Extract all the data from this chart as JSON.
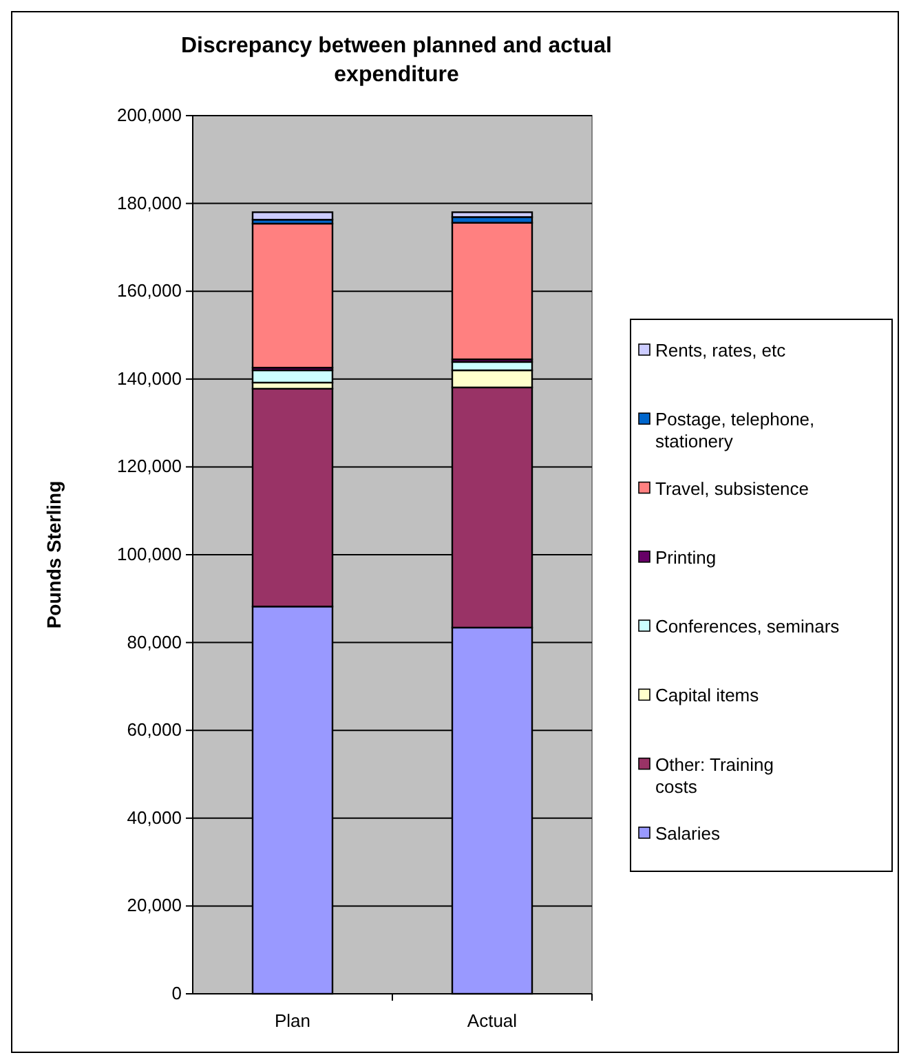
{
  "chart_data": {
    "type": "bar",
    "stacked": true,
    "title": "Discrepancy between planned and actual expenditure",
    "ylabel": "Pounds Sterling",
    "categories": [
      "Plan",
      "Actual"
    ],
    "series": [
      {
        "name": "Salaries",
        "color": "#9999ff",
        "values": [
          88200,
          83400
        ]
      },
      {
        "name": "Other:  Training costs",
        "color": "#993366",
        "values": [
          49600,
          54700
        ]
      },
      {
        "name": "Capital items",
        "color": "#ffffcc",
        "values": [
          1400,
          3900
        ]
      },
      {
        "name": "Conferences, seminars",
        "color": "#ccffff",
        "values": [
          2800,
          1900
        ]
      },
      {
        "name": "Printing",
        "color": "#660066",
        "values": [
          600,
          600
        ]
      },
      {
        "name": "Travel, subsistence",
        "color": "#ff8080",
        "values": [
          32800,
          31100
        ]
      },
      {
        "name": "Postage, telephone, stationery",
        "color": "#0066cc",
        "values": [
          900,
          1300
        ]
      },
      {
        "name": "Rents, rates, etc",
        "color": "#ccccff",
        "values": [
          1700,
          1100
        ]
      }
    ],
    "ylim": [
      0,
      200000
    ],
    "yticks": [
      {
        "value": 0,
        "label": "0"
      },
      {
        "value": 20000,
        "label": "20,000"
      },
      {
        "value": 40000,
        "label": "40,000"
      },
      {
        "value": 60000,
        "label": "60,000"
      },
      {
        "value": 80000,
        "label": "80,000"
      },
      {
        "value": 100000,
        "label": "100,000"
      },
      {
        "value": 120000,
        "label": "120,000"
      },
      {
        "value": 140000,
        "label": "140,000"
      },
      {
        "value": 160000,
        "label": "160,000"
      },
      {
        "value": 180000,
        "label": "180,000"
      },
      {
        "value": 200000,
        "label": "200,000"
      }
    ],
    "grid": "y",
    "legend": "right"
  }
}
